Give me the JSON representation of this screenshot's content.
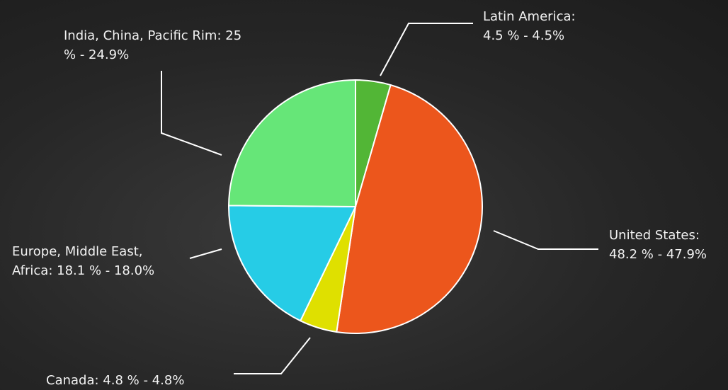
{
  "chart_data": {
    "type": "pie",
    "categories": [
      "Latin America:",
      "United States:",
      "Canada:",
      "Europe, Middle East, Africa:",
      "India, China, Pacific Rim:"
    ],
    "values": [
      4.5,
      48.2,
      4.8,
      18.1,
      25
    ],
    "value_labels": [
      "4.5 % - 4.5%",
      "48.2 % - 47.9%",
      "4.8 % - 4.8%",
      "18.1 % - 18.0%",
      "25 % - 24.9%"
    ],
    "colors": [
      "#52b636",
      "#ec561c",
      "#dfe000",
      "#26cce6",
      "#66e678"
    ]
  }
}
